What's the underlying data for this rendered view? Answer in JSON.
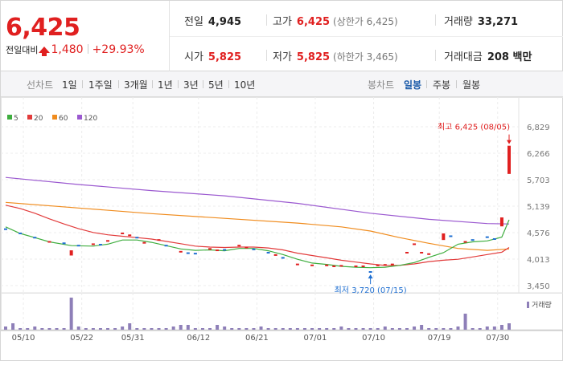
{
  "summary": {
    "current_price": "6,425",
    "change_label": "전일대비",
    "change_amount": "1,480",
    "change_percent": "+29.93%",
    "prev_close_label": "전일",
    "prev_close": "4,945",
    "high_label": "고가",
    "high": "6,425",
    "high_limit": "(상한가 6,425)",
    "volume_label": "거래량",
    "volume": "33,271",
    "open_label": "시가",
    "open": "5,825",
    "low_label": "저가",
    "low": "5,825",
    "low_limit": "(하한가 3,465)",
    "amount_label": "거래대금",
    "amount": "208 백만"
  },
  "tabs": {
    "line_title": "선차트",
    "line_periods": [
      "1일",
      "1주일",
      "3개월",
      "1년",
      "3년",
      "5년",
      "10년"
    ],
    "candle_title": "봉차트",
    "candle_periods": [
      "일봉",
      "주봉",
      "월봉"
    ],
    "candle_selected": "일봉"
  },
  "colors": {
    "up": "#e02020",
    "down": "#1f6fd1",
    "ma5": "#3fae3f",
    "ma20": "#e23b3b",
    "ma60": "#f08c1e",
    "ma120": "#9b59d0",
    "volume": "#8e7fb8"
  },
  "chart_data": {
    "type": "line",
    "legend": [
      "5",
      "20",
      "60",
      "120"
    ],
    "y_ticks": [
      "6,829",
      "6,266",
      "5,703",
      "5,139",
      "4,576",
      "4,013",
      "3,450"
    ],
    "y_tick_values": [
      6829,
      6266,
      5703,
      5139,
      4576,
      4013,
      3450
    ],
    "ylim": [
      3450,
      6829
    ],
    "x_ticks": [
      "05/10",
      "05/22",
      "05/31",
      "06/12",
      "06/21",
      "07/01",
      "07/10",
      "07/19",
      "07/30"
    ],
    "x_tick_index": [
      1,
      9,
      16,
      25,
      33,
      41,
      49,
      58,
      66
    ],
    "n_days": 70,
    "high_annotation": "최고 6,425 (08/05)",
    "low_annotation": "최저 3,720 (07/15)",
    "volume_legend": "거래량",
    "ma5": [
      [
        0,
        4700
      ],
      [
        2,
        4560
      ],
      [
        4,
        4470
      ],
      [
        6,
        4380
      ],
      [
        9,
        4300
      ],
      [
        12,
        4290
      ],
      [
        14,
        4330
      ],
      [
        16,
        4420
      ],
      [
        18,
        4420
      ],
      [
        20,
        4370
      ],
      [
        22,
        4300
      ],
      [
        24,
        4230
      ],
      [
        26,
        4200
      ],
      [
        28,
        4210
      ],
      [
        30,
        4190
      ],
      [
        32,
        4240
      ],
      [
        34,
        4240
      ],
      [
        36,
        4190
      ],
      [
        38,
        4110
      ],
      [
        40,
        4010
      ],
      [
        42,
        3930
      ],
      [
        44,
        3900
      ],
      [
        46,
        3860
      ],
      [
        48,
        3840
      ],
      [
        50,
        3830
      ],
      [
        52,
        3840
      ],
      [
        54,
        3880
      ],
      [
        56,
        3940
      ],
      [
        58,
        4050
      ],
      [
        60,
        4150
      ],
      [
        62,
        4330
      ],
      [
        64,
        4380
      ],
      [
        66,
        4400
      ],
      [
        68,
        4480
      ],
      [
        69,
        4850
      ]
    ],
    "ma20": [
      [
        0,
        5160
      ],
      [
        2,
        5090
      ],
      [
        4,
        4990
      ],
      [
        6,
        4870
      ],
      [
        8,
        4760
      ],
      [
        10,
        4660
      ],
      [
        12,
        4580
      ],
      [
        14,
        4530
      ],
      [
        16,
        4500
      ],
      [
        18,
        4470
      ],
      [
        20,
        4440
      ],
      [
        22,
        4390
      ],
      [
        24,
        4340
      ],
      [
        26,
        4290
      ],
      [
        28,
        4270
      ],
      [
        30,
        4260
      ],
      [
        32,
        4270
      ],
      [
        34,
        4270
      ],
      [
        36,
        4250
      ],
      [
        38,
        4210
      ],
      [
        40,
        4140
      ],
      [
        42,
        4090
      ],
      [
        44,
        4040
      ],
      [
        46,
        3990
      ],
      [
        48,
        3950
      ],
      [
        50,
        3910
      ],
      [
        52,
        3880
      ],
      [
        54,
        3880
      ],
      [
        56,
        3910
      ],
      [
        58,
        3960
      ],
      [
        60,
        3990
      ],
      [
        62,
        4010
      ],
      [
        64,
        4060
      ],
      [
        66,
        4110
      ],
      [
        68,
        4160
      ],
      [
        69,
        4260
      ]
    ],
    "ma60": [
      [
        0,
        5220
      ],
      [
        10,
        5100
      ],
      [
        20,
        4980
      ],
      [
        30,
        4880
      ],
      [
        40,
        4780
      ],
      [
        46,
        4700
      ],
      [
        50,
        4610
      ],
      [
        54,
        4470
      ],
      [
        58,
        4350
      ],
      [
        62,
        4240
      ],
      [
        66,
        4200
      ],
      [
        69,
        4230
      ]
    ],
    "ma120": [
      [
        0,
        5750
      ],
      [
        10,
        5600
      ],
      [
        20,
        5470
      ],
      [
        30,
        5360
      ],
      [
        40,
        5200
      ],
      [
        50,
        4990
      ],
      [
        58,
        4860
      ],
      [
        66,
        4770
      ],
      [
        69,
        4760
      ]
    ],
    "candles": [
      [
        0,
        4650,
        4650,
        "down"
      ],
      [
        2,
        4560,
        4560,
        "down"
      ],
      [
        4,
        4470,
        4470,
        "down"
      ],
      [
        6,
        4380,
        4380,
        "up"
      ],
      [
        8,
        4350,
        4330,
        "down"
      ],
      [
        9,
        4200,
        4090,
        "up"
      ],
      [
        10,
        4300,
        4300,
        "down"
      ],
      [
        12,
        4330,
        4330,
        "up"
      ],
      [
        13,
        4320,
        4320,
        "down"
      ],
      [
        14,
        4400,
        4400,
        "up"
      ],
      [
        16,
        4560,
        4560,
        "up"
      ],
      [
        17,
        4520,
        4520,
        "up"
      ],
      [
        18,
        4470,
        4470,
        "down"
      ],
      [
        19,
        4360,
        4360,
        "up"
      ],
      [
        21,
        4420,
        4420,
        "up"
      ],
      [
        22,
        4300,
        4300,
        "down"
      ],
      [
        24,
        4170,
        4170,
        "up"
      ],
      [
        25,
        4140,
        4140,
        "down"
      ],
      [
        26,
        4130,
        4130,
        "down"
      ],
      [
        28,
        4230,
        4230,
        "up"
      ],
      [
        29,
        4200,
        4200,
        "up"
      ],
      [
        30,
        4210,
        4210,
        "down"
      ],
      [
        32,
        4300,
        4300,
        "up"
      ],
      [
        33,
        4260,
        4260,
        "up"
      ],
      [
        34,
        4220,
        4220,
        "down"
      ],
      [
        36,
        4150,
        4150,
        "down"
      ],
      [
        37,
        4100,
        4100,
        "up"
      ],
      [
        38,
        4040,
        4040,
        "down"
      ],
      [
        40,
        3900,
        3900,
        "up"
      ],
      [
        42,
        3880,
        3880,
        "up"
      ],
      [
        44,
        3880,
        3880,
        "up"
      ],
      [
        45,
        3860,
        3860,
        "up"
      ],
      [
        46,
        3870,
        3870,
        "up"
      ],
      [
        48,
        3860,
        3860,
        "up"
      ],
      [
        49,
        3860,
        3860,
        "up"
      ],
      [
        50,
        3720,
        3740,
        "down"
      ],
      [
        51,
        3880,
        3880,
        "up"
      ],
      [
        52,
        3890,
        3890,
        "up"
      ],
      [
        53,
        3900,
        3900,
        "up"
      ],
      [
        55,
        4150,
        4150,
        "up"
      ],
      [
        56,
        4330,
        4330,
        "up"
      ],
      [
        57,
        4150,
        4150,
        "up"
      ],
      [
        58,
        4120,
        4120,
        "up"
      ],
      [
        60,
        4560,
        4420,
        "up"
      ],
      [
        61,
        4500,
        4500,
        "down"
      ],
      [
        63,
        4380,
        4380,
        "up"
      ],
      [
        64,
        4420,
        4420,
        "down"
      ],
      [
        66,
        4480,
        4480,
        "down"
      ],
      [
        67,
        4440,
        4440,
        "down"
      ],
      [
        68,
        4900,
        4710,
        "up"
      ],
      [
        69,
        6425,
        5825,
        "up"
      ]
    ],
    "volumes": [
      2,
      4,
      1,
      1,
      2,
      1,
      1,
      1,
      1,
      20,
      2,
      1,
      1,
      1,
      1,
      1,
      2,
      4,
      1,
      1,
      1,
      1,
      1,
      2,
      3,
      3,
      1,
      1,
      1,
      3,
      2,
      1,
      1,
      1,
      1,
      2,
      1,
      1,
      1,
      1,
      1,
      1,
      1,
      1,
      1,
      1,
      2,
      1,
      1,
      1,
      1,
      1,
      2,
      1,
      1,
      1,
      2,
      3,
      1,
      1,
      1,
      1,
      2,
      10,
      1,
      1,
      2,
      2,
      3,
      4
    ]
  }
}
